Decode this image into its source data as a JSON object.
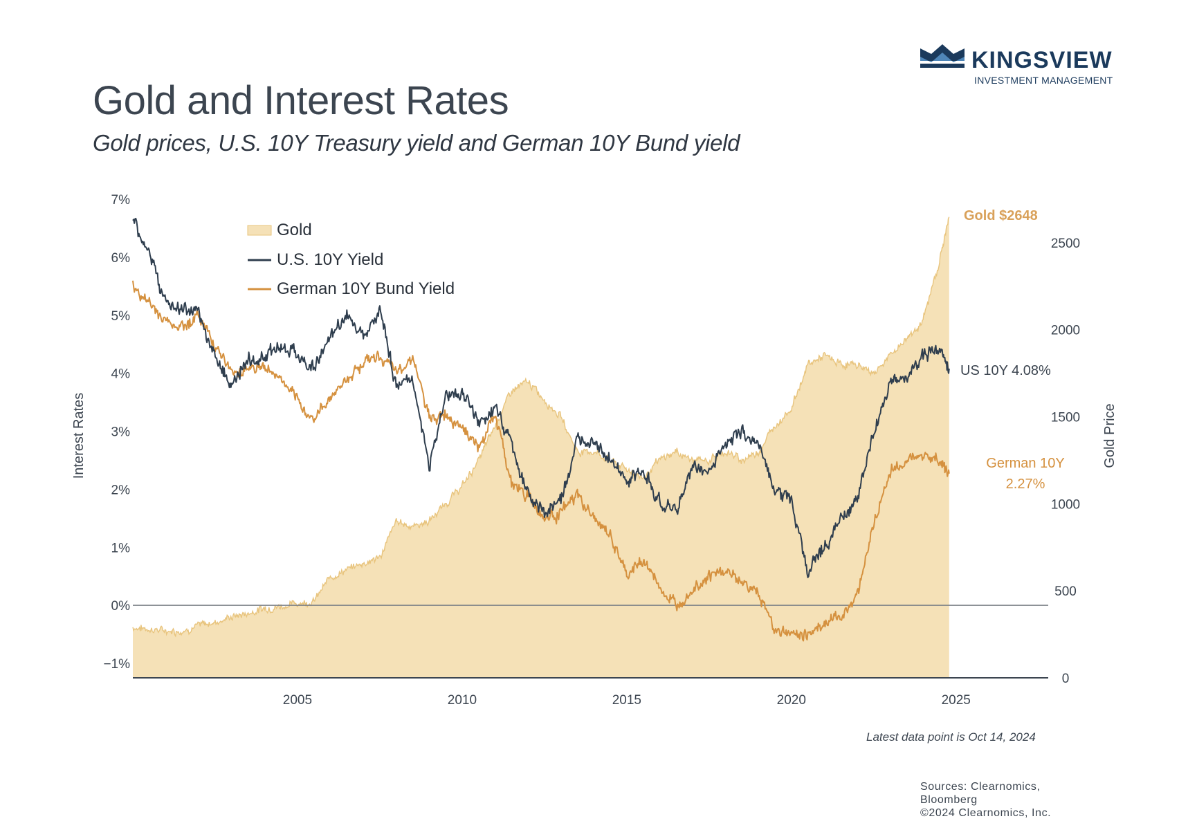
{
  "header": {
    "title": "Gold and Interest Rates",
    "subtitle": "Gold prices, U.S. 10Y Treasury yield and German 10Y Bund yield"
  },
  "brand": {
    "name": "KINGSVIEW",
    "tagline": "INVESTMENT MANAGEMENT",
    "color": "#1b3a5c"
  },
  "chart_data": {
    "type": "line",
    "title": "Gold and Interest Rates",
    "ylabel": "Interest Rates",
    "y2label": "Gold Price",
    "xlim": [
      2000,
      2027.8
    ],
    "ylim": [
      -1.25,
      7
    ],
    "y2lim": [
      0,
      2750
    ],
    "x_ticks": [
      "2005",
      "2010",
      "2015",
      "2020",
      "2025"
    ],
    "y_ticks": [
      "7%",
      "6%",
      "5%",
      "4%",
      "3%",
      "2%",
      "1%",
      "0%",
      "−1%"
    ],
    "y2_ticks": [
      "2500",
      "2000",
      "1500",
      "1000",
      "500",
      "0"
    ],
    "legend": [
      "Gold",
      "U.S. 10Y Yield",
      "German 10Y Bund Yield"
    ],
    "legend_position": "top-left",
    "colors": {
      "gold": "#f5e1b7",
      "gold_line": "#e8c47d",
      "us": "#2f3e4e",
      "german": "#d5913f",
      "gold_label": "#d9a15a"
    },
    "series": [
      {
        "name": "Gold",
        "axis": "right",
        "x": [
          2000,
          2000.5,
          2001,
          2001.5,
          2002,
          2002.5,
          2003,
          2003.5,
          2004,
          2004.5,
          2005,
          2005.5,
          2006,
          2006.5,
          2007,
          2007.5,
          2008,
          2008.5,
          2009,
          2009.5,
          2010,
          2010.5,
          2011,
          2011.5,
          2012,
          2012.5,
          2013,
          2013.5,
          2014,
          2014.5,
          2015,
          2015.5,
          2016,
          2016.5,
          2017,
          2017.5,
          2018,
          2018.5,
          2019,
          2019.5,
          2020,
          2020.5,
          2021,
          2021.5,
          2022,
          2022.5,
          2023,
          2023.5,
          2024,
          2024.5,
          2024.79
        ],
        "values": [
          290,
          280,
          270,
          270,
          300,
          320,
          350,
          370,
          400,
          410,
          430,
          440,
          580,
          620,
          660,
          690,
          900,
          870,
          900,
          1000,
          1100,
          1250,
          1450,
          1650,
          1700,
          1600,
          1500,
          1300,
          1300,
          1250,
          1200,
          1150,
          1250,
          1300,
          1250,
          1250,
          1300,
          1250,
          1300,
          1450,
          1550,
          1800,
          1850,
          1800,
          1800,
          1750,
          1850,
          1950,
          2050,
          2400,
          2648
        ]
      },
      {
        "name": "U.S. 10Y Yield",
        "axis": "left",
        "x": [
          2000,
          2000.5,
          2001,
          2001.5,
          2002,
          2002.5,
          2003,
          2003.5,
          2004,
          2004.5,
          2005,
          2005.5,
          2006,
          2006.5,
          2007,
          2007.5,
          2008,
          2008.5,
          2009,
          2009.5,
          2010,
          2010.5,
          2011,
          2011.5,
          2012,
          2012.5,
          2013,
          2013.5,
          2014,
          2014.5,
          2015,
          2015.5,
          2016,
          2016.5,
          2017,
          2017.5,
          2018,
          2018.5,
          2019,
          2019.5,
          2020,
          2020.5,
          2021,
          2021.5,
          2022,
          2022.5,
          2023,
          2023.5,
          2024,
          2024.5,
          2024.79
        ],
        "values": [
          6.6,
          6.1,
          5.2,
          5.1,
          5.0,
          4.3,
          3.8,
          4.2,
          4.3,
          4.5,
          4.3,
          4.1,
          4.6,
          5.0,
          4.7,
          5.1,
          3.8,
          3.9,
          2.4,
          3.6,
          3.7,
          3.1,
          3.4,
          2.8,
          1.9,
          1.6,
          1.8,
          2.8,
          2.9,
          2.5,
          2.1,
          2.3,
          1.8,
          1.6,
          2.4,
          2.3,
          2.8,
          3.0,
          2.8,
          2.0,
          1.8,
          0.6,
          1.0,
          1.5,
          1.8,
          3.0,
          3.8,
          3.9,
          4.3,
          4.4,
          4.08
        ]
      },
      {
        "name": "German 10Y Bund Yield",
        "axis": "left",
        "x": [
          2000,
          2000.5,
          2001,
          2001.5,
          2002,
          2002.5,
          2003,
          2003.5,
          2004,
          2004.5,
          2005,
          2005.5,
          2006,
          2006.5,
          2007,
          2007.5,
          2008,
          2008.5,
          2009,
          2009.5,
          2010,
          2010.5,
          2011,
          2011.5,
          2012,
          2012.5,
          2013,
          2013.5,
          2014,
          2014.5,
          2015,
          2015.5,
          2016,
          2016.5,
          2017,
          2017.5,
          2018,
          2018.5,
          2019,
          2019.5,
          2020,
          2020.5,
          2021,
          2021.5,
          2022,
          2022.5,
          2023,
          2023.5,
          2024,
          2024.5,
          2024.79
        ],
        "values": [
          5.5,
          5.2,
          4.9,
          4.8,
          5.0,
          4.5,
          4.0,
          4.1,
          4.1,
          3.9,
          3.5,
          3.2,
          3.6,
          3.9,
          4.2,
          4.3,
          4.0,
          4.3,
          3.2,
          3.3,
          3.1,
          2.7,
          3.3,
          2.1,
          1.9,
          1.5,
          1.6,
          1.9,
          1.5,
          1.2,
          0.5,
          0.8,
          0.3,
          0.0,
          0.3,
          0.5,
          0.6,
          0.4,
          0.2,
          -0.4,
          -0.5,
          -0.5,
          -0.3,
          -0.2,
          0.2,
          1.4,
          2.3,
          2.5,
          2.6,
          2.5,
          2.27
        ]
      }
    ],
    "annotations": {
      "gold": "Gold $2648",
      "us": "US 10Y 4.08%",
      "german_line1": "German 10Y",
      "german_line2": "2.27%"
    }
  },
  "footnote": "Latest data point is Oct 14, 2024",
  "sources": {
    "line1": "Sources: Clearnomics,",
    "line2": "Bloomberg",
    "line3": "©2024 Clearnomics, Inc."
  }
}
